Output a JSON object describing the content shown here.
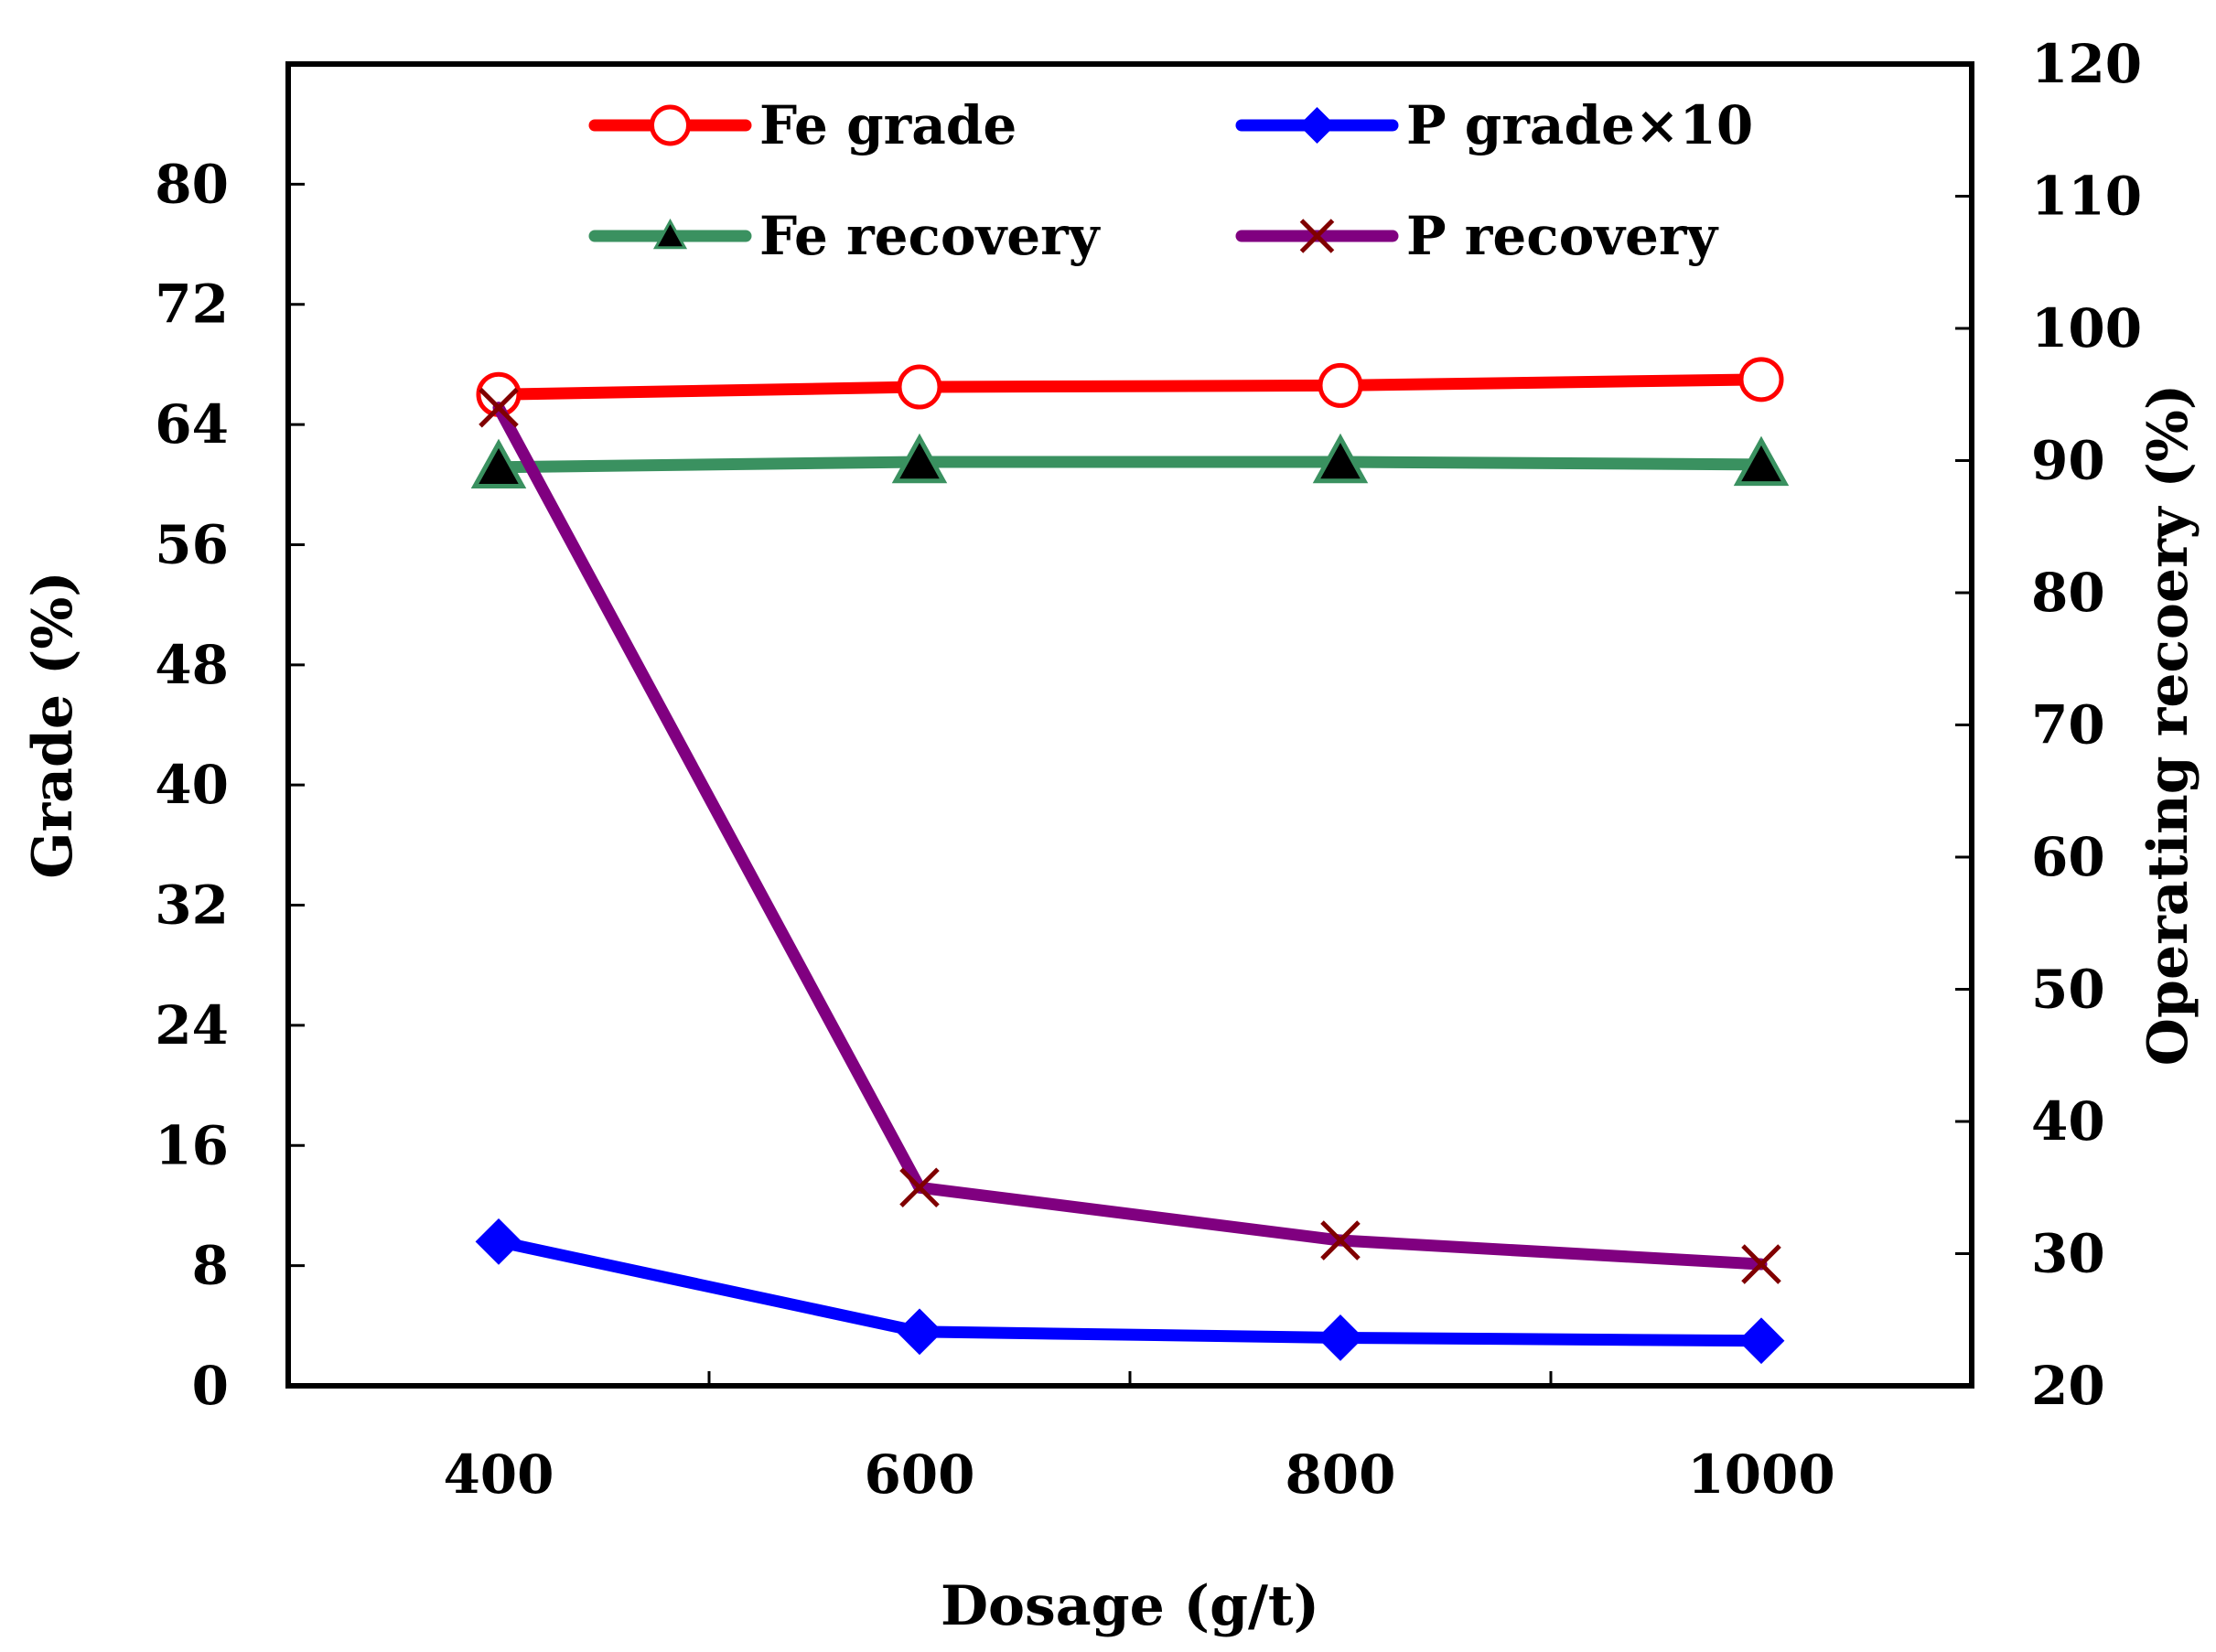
{
  "chart_data": {
    "type": "line",
    "x": [
      400,
      600,
      800,
      1000
    ],
    "xlabel": "Dosage (g/t)",
    "xlim": [
      300,
      1100
    ],
    "xticks_minor": [
      300,
      500,
      700,
      900,
      1100
    ],
    "xtick_labels": [
      "400",
      "600",
      "800",
      "1000"
    ],
    "ylabel_left": "Grade (%)",
    "ylim_left": [
      0,
      88
    ],
    "yticks_left": [
      "0",
      "8",
      "16",
      "24",
      "32",
      "40",
      "48",
      "56",
      "64",
      "72",
      "80"
    ],
    "ylabel_right": "Operating recoery (%)",
    "ylim_right": [
      20,
      120
    ],
    "yticks_right": [
      "20",
      "30",
      "40",
      "50",
      "60",
      "70",
      "80",
      "90",
      "100",
      "110",
      "120"
    ],
    "grid": false,
    "legend_placement": "top",
    "series": [
      {
        "name": "Fe grade",
        "axis": "left",
        "values": [
          66.0,
          66.5,
          66.6,
          67.0
        ],
        "color": "#ff0000",
        "marker": "open-circle"
      },
      {
        "name": "P grade×10",
        "axis": "left",
        "values": [
          9.6,
          3.6,
          3.2,
          3.0
        ],
        "color": "#0000ff",
        "marker": "diamond"
      },
      {
        "name": "Fe recovery",
        "axis": "right",
        "values": [
          89.5,
          89.9,
          89.9,
          89.7
        ],
        "color": "#3a9160",
        "marker": "filled-triangle"
      },
      {
        "name": "P recovery",
        "axis": "right",
        "values": [
          94.0,
          35.0,
          31.0,
          29.2
        ],
        "color": "#800080",
        "marker": "x"
      }
    ]
  }
}
